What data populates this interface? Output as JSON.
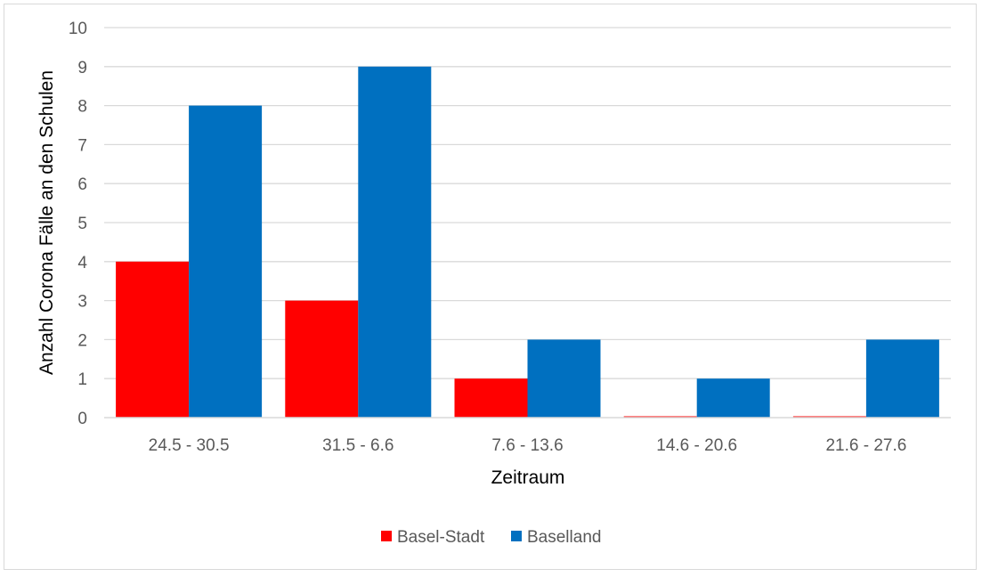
{
  "chart_data": {
    "type": "bar",
    "categories": [
      "24.5 - 30.5",
      "31.5 - 6.6",
      "7.6 - 13.6",
      "14.6 - 20.6",
      "21.6 - 27.6"
    ],
    "series": [
      {
        "name": "Basel-Stadt",
        "values": [
          4,
          3,
          1,
          0,
          0
        ],
        "color": "#ff0000"
      },
      {
        "name": "Baselland",
        "values": [
          8,
          9,
          2,
          1,
          2
        ],
        "color": "#0070c0"
      }
    ],
    "title": "",
    "xlabel": "Zeitraum",
    "ylabel": "Anzahl Corona Fälle an den Schulen",
    "ylim": [
      0,
      10
    ],
    "yticks": [
      0,
      1,
      2,
      3,
      4,
      5,
      6,
      7,
      8,
      9,
      10
    ],
    "grid": true,
    "legend_position": "bottom",
    "gridline_color": "#d9d9d9"
  }
}
